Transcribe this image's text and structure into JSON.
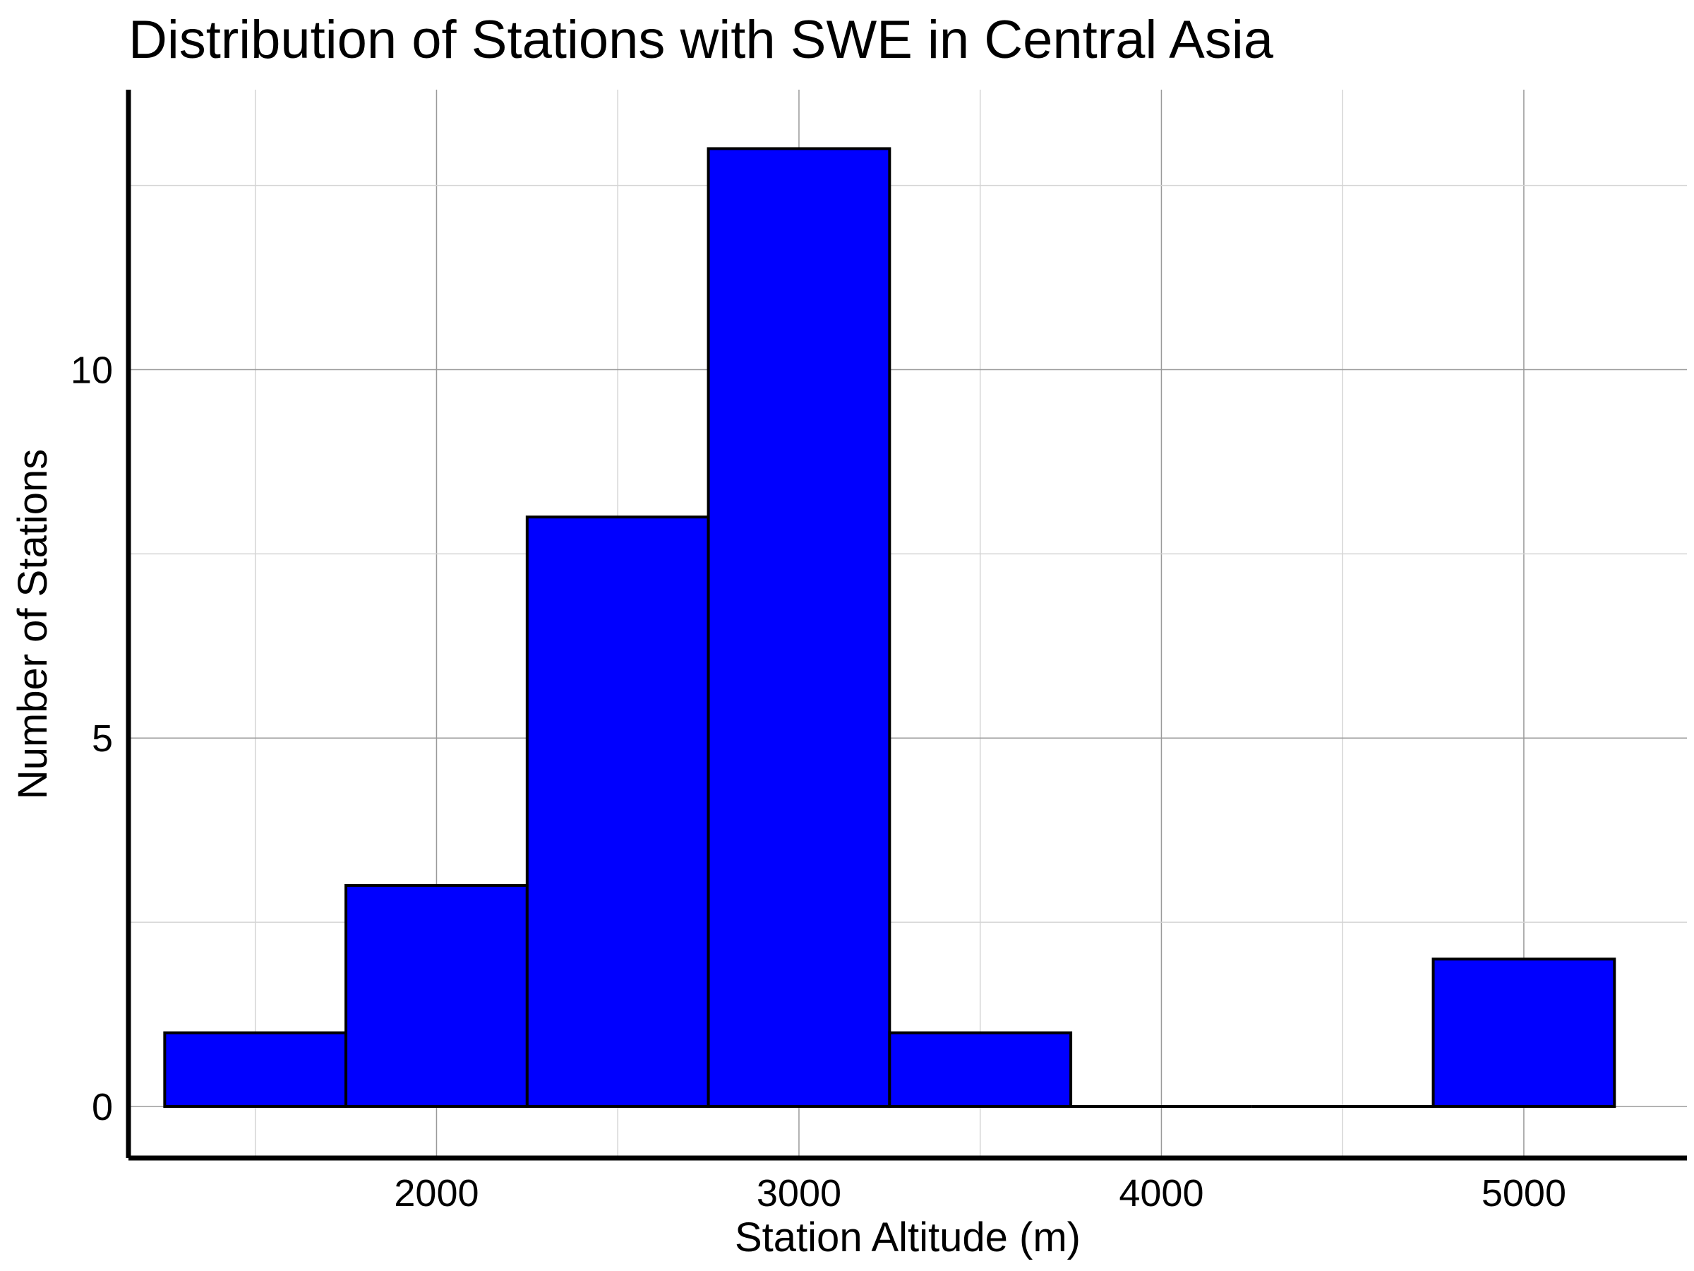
{
  "chart_data": {
    "type": "bar",
    "title": "Distribution of Stations with SWE in Central Asia",
    "xlabel": "Station Altitude (m)",
    "ylabel": "Number of Stations",
    "xlim": [
      1150,
      5450
    ],
    "ylim": [
      -0.7,
      13.8
    ],
    "x_ticks": [
      "2000",
      "3000",
      "4000",
      "5000"
    ],
    "y_ticks": [
      "0",
      "5",
      "10"
    ],
    "bins": [
      {
        "x0": 1250,
        "x1": 1750,
        "count": 1
      },
      {
        "x0": 1750,
        "x1": 2250,
        "count": 3
      },
      {
        "x0": 2250,
        "x1": 2750,
        "count": 8
      },
      {
        "x0": 2750,
        "x1": 3250,
        "count": 13
      },
      {
        "x0": 3250,
        "x1": 3750,
        "count": 1
      },
      {
        "x0": 3750,
        "x1": 4250,
        "count": 0
      },
      {
        "x0": 4250,
        "x1": 4750,
        "count": 0
      },
      {
        "x0": 4750,
        "x1": 5250,
        "count": 2
      }
    ],
    "bar_color": "#0000ff",
    "bar_edge_color": "#000000",
    "grid": true
  }
}
